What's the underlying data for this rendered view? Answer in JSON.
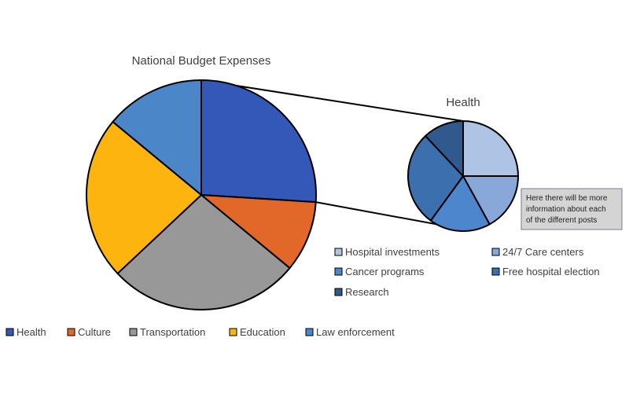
{
  "chart_data": [
    {
      "type": "pie",
      "title": "National Budget Expenses",
      "categories": [
        "Health",
        "Culture",
        "Transportation",
        "Education",
        "Law enforcement"
      ],
      "values": [
        26,
        10,
        27,
        23,
        14
      ],
      "colors": [
        "#3458b8",
        "#e2682a",
        "#989898",
        "#fdb40e",
        "#4a86c8"
      ],
      "legend_position": "bottom"
    },
    {
      "type": "pie",
      "title": "Health",
      "categories": [
        "Hospital investments",
        "24/7 Care centers",
        "Cancer programs",
        "Free hospital election",
        "Research"
      ],
      "values": [
        25,
        17,
        18,
        28,
        12
      ],
      "colors": [
        "#afc3e4",
        "#87a8d8",
        "#4d86cc",
        "#3b6fae",
        "#305a8e"
      ],
      "legend_position": "bottom-right",
      "annotation": "Here there will be more information about each of the different posts"
    }
  ],
  "callout": {
    "lines": [
      "Here there will be more",
      "information about each",
      "of the different posts"
    ]
  }
}
